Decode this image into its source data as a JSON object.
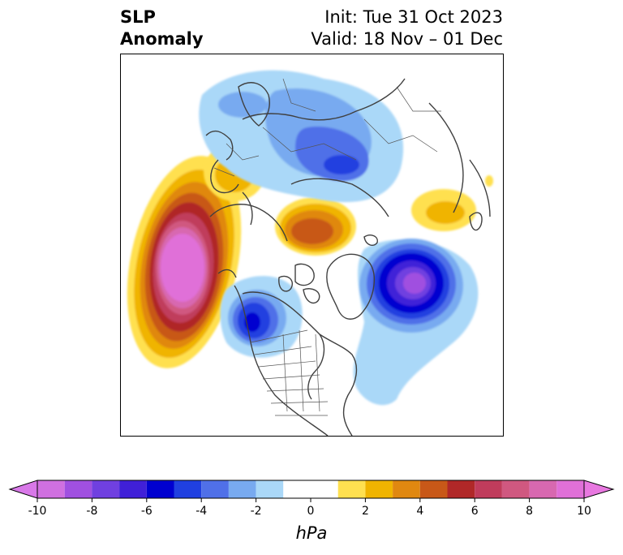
{
  "title": {
    "left_line1": "SLP",
    "left_line2": "Anomaly",
    "right_line1": "Init: Tue 31 Oct 2023",
    "right_line2": "Valid: 18 Nov – 01 Dec"
  },
  "colorbar": {
    "unit": "hPa",
    "extend": "both",
    "tick_values": [
      -10,
      -8,
      -6,
      -4,
      -2,
      0,
      2,
      4,
      6,
      8,
      10
    ],
    "tick_labels": [
      "-10",
      "-8",
      "-6",
      "-4",
      "-2",
      "0",
      "2",
      "4",
      "6",
      "8",
      "10"
    ],
    "levels": [
      -10,
      -9,
      -8,
      -7,
      -6,
      -5,
      -4,
      -3,
      -2,
      -1,
      1,
      2,
      3,
      4,
      5,
      6,
      7,
      8,
      9,
      10
    ],
    "colors": [
      "#d070e0",
      "#a050e0",
      "#7040e0",
      "#4020d8",
      "#0000d0",
      "#2040e0",
      "#5070e8",
      "#78aaf0",
      "#aad8f8",
      "#ffffff",
      "#ffe050",
      "#f0b400",
      "#e08810",
      "#c85818",
      "#b02828",
      "#c03c5c",
      "#d05880",
      "#d868b0",
      "#e070d8"
    ],
    "under_color": "#d878e8",
    "over_color": "#e878e0"
  },
  "map": {
    "projection": "north-polar-stereographic",
    "anomaly_features": [
      {
        "region": "North Pacific / Gulf of Alaska",
        "sign": "positive",
        "peak_hPa": 10
      },
      {
        "region": "Western North America (BC/Alberta)",
        "sign": "negative",
        "peak_hPa": -6
      },
      {
        "region": "North Atlantic south of Iceland",
        "sign": "negative",
        "peak_hPa": -9
      },
      {
        "region": "Siberia / Arctic coast",
        "sign": "positive",
        "peak_hPa": 5
      },
      {
        "region": "Western Europe",
        "sign": "positive",
        "peak_hPa": 2
      },
      {
        "region": "Northern Russia / Ural",
        "sign": "negative",
        "peak_hPa": -5
      },
      {
        "region": "Japan / Kamchatka",
        "sign": "positive",
        "peak_hPa": 2
      }
    ]
  }
}
